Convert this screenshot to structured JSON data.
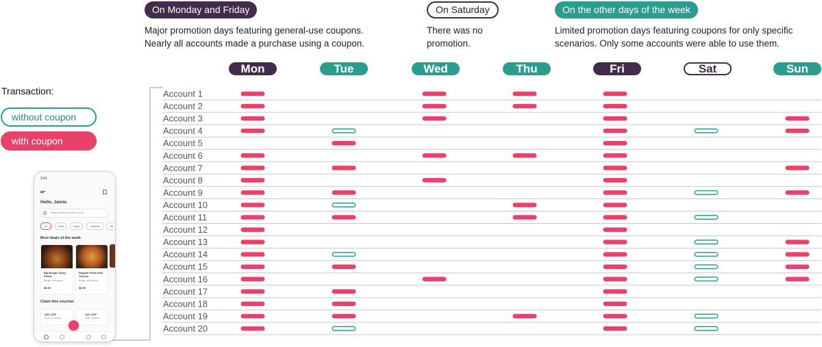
{
  "header": {
    "groups": [
      {
        "tag": "On Monday and Friday",
        "lines": [
          "Major promotion days featuring general-use coupons.",
          "Nearly all accounts made a purchase using a coupon."
        ]
      },
      {
        "tag": "On Saturday",
        "lines": [
          "There was no",
          "promotion."
        ]
      },
      {
        "tag": "On the other days of the week",
        "lines": [
          "Limited promotion days featuring coupons for only specific",
          "scenarios. Only some accounts were able to use them."
        ]
      }
    ]
  },
  "days": [
    "Mon",
    "Tue",
    "Wed",
    "Thu",
    "Fri",
    "Sat",
    "Sun"
  ],
  "legend": {
    "title": "Transaction:",
    "without_coupon": "without coupon",
    "with_coupon": "with coupon"
  },
  "colors": {
    "with_coupon": "#e8426b",
    "without_coupon": "#2a9d8f",
    "dark": "#432b4b"
  },
  "accounts": [
    {
      "name": "Account 1",
      "tx": [
        "C",
        "",
        "C",
        "C",
        "C",
        "",
        ""
      ]
    },
    {
      "name": "Account 2",
      "tx": [
        "C",
        "",
        "C",
        "C",
        "C",
        "",
        ""
      ]
    },
    {
      "name": "Account 3",
      "tx": [
        "C",
        "",
        "C",
        "",
        "C",
        "",
        "C"
      ]
    },
    {
      "name": "Account 4",
      "tx": [
        "C",
        "N",
        "",
        "",
        "C",
        "N",
        "C"
      ]
    },
    {
      "name": "Account 5",
      "tx": [
        "",
        "C",
        "",
        "",
        "C",
        "",
        ""
      ]
    },
    {
      "name": "Account 6",
      "tx": [
        "C",
        "",
        "C",
        "C",
        "C",
        "",
        ""
      ]
    },
    {
      "name": "Account 7",
      "tx": [
        "C",
        "C",
        "",
        "",
        "C",
        "",
        "C"
      ]
    },
    {
      "name": "Account 8",
      "tx": [
        "C",
        "",
        "C",
        "",
        "C",
        "",
        ""
      ]
    },
    {
      "name": "Account 9",
      "tx": [
        "C",
        "C",
        "",
        "",
        "C",
        "N",
        "C"
      ]
    },
    {
      "name": "Account 10",
      "tx": [
        "C",
        "N",
        "",
        "C",
        "C",
        "",
        ""
      ]
    },
    {
      "name": "Account 11",
      "tx": [
        "C",
        "C",
        "",
        "C",
        "C",
        "N",
        ""
      ]
    },
    {
      "name": "Account 12",
      "tx": [
        "C",
        "",
        "",
        "",
        "C",
        "",
        ""
      ]
    },
    {
      "name": "Account 13",
      "tx": [
        "C",
        "",
        "",
        "",
        "C",
        "N",
        "C"
      ]
    },
    {
      "name": "Account 14",
      "tx": [
        "C",
        "N",
        "",
        "",
        "C",
        "N",
        "C"
      ]
    },
    {
      "name": "Account 15",
      "tx": [
        "C",
        "C",
        "",
        "",
        "C",
        "N",
        "C"
      ]
    },
    {
      "name": "Account 16",
      "tx": [
        "C",
        "",
        "C",
        "",
        "C",
        "N",
        "C"
      ]
    },
    {
      "name": "Account 17",
      "tx": [
        "C",
        "C",
        "",
        "",
        "C",
        "",
        ""
      ]
    },
    {
      "name": "Account 18",
      "tx": [
        "C",
        "C",
        "",
        "",
        "C",
        "",
        ""
      ]
    },
    {
      "name": "Account 19",
      "tx": [
        "C",
        "C",
        "",
        "C",
        "C",
        "N",
        ""
      ]
    },
    {
      "name": "Account 20",
      "tx": [
        "C",
        "N",
        "",
        "",
        "C",
        "N",
        ""
      ]
    }
  ],
  "phone": {
    "time": "9:41",
    "greeting": "Hello, Jamie.",
    "search_placeholder": "What would you like to eat?",
    "chips": [
      "All",
      "Food",
      "Drink",
      "Dessert",
      "He"
    ],
    "section_deals": "Best deals of the week",
    "cards": [
      {
        "title": "Big Burger Spicy Flavor",
        "subtitle": "Burger with sauce",
        "price": "$8.90"
      },
      {
        "title": "Regular Pizza with Cheese",
        "subtitle": "Burger with sauce",
        "price": "$8.90"
      }
    ],
    "section_voucher": "Claim this voucher",
    "vouchers": [
      {
        "title": "25% OFF",
        "subtitle": "Food & Dessert"
      },
      {
        "title": "10% OFF",
        "subtitle": "Fillet Chicken"
      }
    ]
  }
}
